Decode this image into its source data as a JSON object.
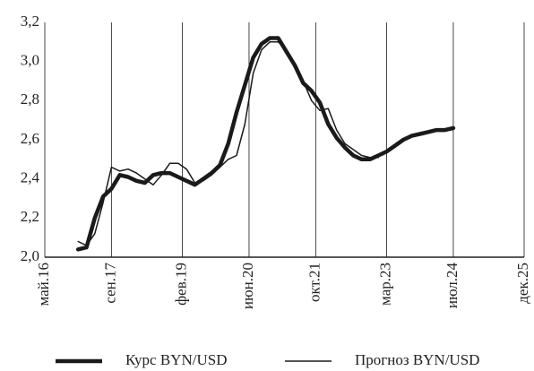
{
  "chart_data": {
    "type": "line",
    "x": [
      "2017-01",
      "2017-03",
      "2017-05",
      "2017-07",
      "2017-09",
      "2017-11",
      "2018-01",
      "2018-03",
      "2018-05",
      "2018-07",
      "2018-09",
      "2018-11",
      "2019-01",
      "2019-03",
      "2019-05",
      "2019-07",
      "2019-09",
      "2019-11",
      "2020-01",
      "2020-03",
      "2020-05",
      "2020-07",
      "2020-09",
      "2020-11",
      "2021-01",
      "2021-03",
      "2021-05",
      "2021-07",
      "2021-09",
      "2021-11",
      "2022-01",
      "2022-03",
      "2022-05",
      "2022-07",
      "2022-09",
      "2022-11",
      "2023-01",
      "2023-03",
      "2023-05",
      "2023-07",
      "2023-09",
      "2023-11",
      "2024-01",
      "2024-03",
      "2024-05",
      "2024-07"
    ],
    "series": [
      {
        "name": "Курс BYN/USD",
        "color": "#1a1a1a",
        "width": "thick",
        "values": [
          2.04,
          2.05,
          2.2,
          2.31,
          2.35,
          2.42,
          2.41,
          2.39,
          2.38,
          2.42,
          2.43,
          2.43,
          2.41,
          2.39,
          2.37,
          2.4,
          2.43,
          2.47,
          2.58,
          2.74,
          2.88,
          3.02,
          3.09,
          3.12,
          3.12,
          3.05,
          2.98,
          2.89,
          2.85,
          2.79,
          2.68,
          2.61,
          2.56,
          2.52,
          2.5,
          2.5,
          2.52,
          2.54,
          2.57,
          2.6,
          2.62,
          2.63,
          2.64,
          2.65,
          2.65,
          2.66
        ]
      },
      {
        "name": "Прогноз BYN/USD",
        "color": "#1a1a1a",
        "width": "thin",
        "values": [
          2.08,
          2.06,
          2.12,
          2.28,
          2.46,
          2.44,
          2.45,
          2.43,
          2.4,
          2.37,
          2.42,
          2.48,
          2.48,
          2.45,
          2.38,
          2.39,
          2.42,
          2.46,
          2.5,
          2.52,
          2.68,
          2.94,
          3.06,
          3.1,
          3.1,
          3.06,
          2.99,
          2.9,
          2.8,
          2.75,
          2.76,
          2.65,
          2.58,
          2.55,
          2.52,
          2.51,
          2.51,
          null,
          null,
          null,
          null,
          null,
          null,
          null,
          null,
          null
        ]
      }
    ],
    "xlim": [
      "2016-05",
      "2025-12"
    ],
    "xticks": [
      {
        "value": "2016-05",
        "label": "май.16"
      },
      {
        "value": "2017-09",
        "label": "сен.17"
      },
      {
        "value": "2019-02",
        "label": "фев.19"
      },
      {
        "value": "2020-06",
        "label": "июн.20"
      },
      {
        "value": "2021-10",
        "label": "окт.21"
      },
      {
        "value": "2023-03",
        "label": "мар.23"
      },
      {
        "value": "2024-07",
        "label": "июл.24"
      },
      {
        "value": "2025-12",
        "label": "дек.25"
      }
    ],
    "ylim": [
      2.0,
      3.2
    ],
    "yticks": [
      {
        "value": 2.0,
        "label": "2,0"
      },
      {
        "value": 2.2,
        "label": "2,2"
      },
      {
        "value": 2.4,
        "label": "2,4"
      },
      {
        "value": 2.6,
        "label": "2,6"
      },
      {
        "value": 2.8,
        "label": "2,8"
      },
      {
        "value": 3.0,
        "label": "3,0"
      },
      {
        "value": 3.2,
        "label": "3,2"
      }
    ],
    "grid": "x",
    "legend": "bottom"
  }
}
